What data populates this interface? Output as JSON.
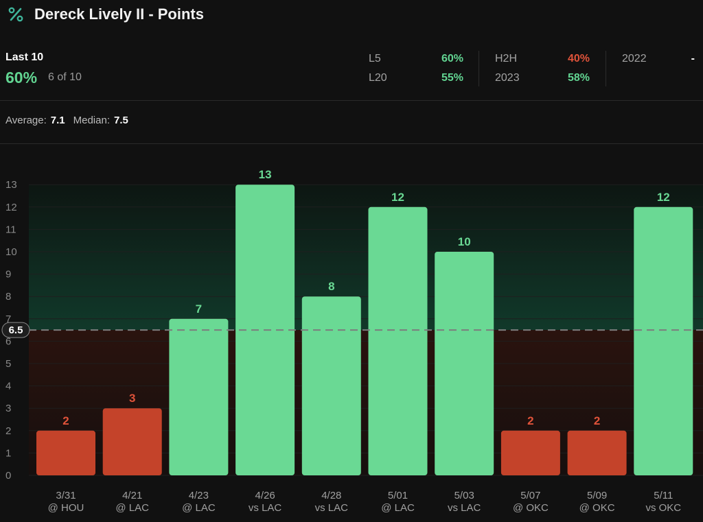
{
  "header": {
    "title": "Dereck Lively II - Points",
    "icon": "percent-icon"
  },
  "summary": {
    "label": "Last 10",
    "pct": "60%",
    "count": "6 of 10"
  },
  "stats": [
    {
      "label": "L5",
      "value": "60%",
      "color": "#62d592"
    },
    {
      "label": "L20",
      "value": "55%",
      "color": "#62d592"
    },
    {
      "label": "H2H",
      "value": "40%",
      "color": "#e0533a"
    },
    {
      "label": "2023",
      "value": "58%",
      "color": "#62d592"
    },
    {
      "label": "2022",
      "value": "-",
      "color": "#ffffff"
    }
  ],
  "averages": {
    "avg_label": "Average:",
    "avg": "7.1",
    "median_label": "Median:",
    "median": "7.5"
  },
  "colors": {
    "over": "#6ad994",
    "under": "#c4432a",
    "over_text": "#6ad994",
    "under_text": "#e0533a"
  },
  "chart_data": {
    "type": "bar",
    "line": 6.5,
    "line_label": "6.5",
    "ylim": [
      0,
      13
    ],
    "yticks": [
      0,
      1,
      2,
      3,
      4,
      5,
      6,
      7,
      8,
      9,
      10,
      11,
      12,
      13
    ],
    "categories": [
      [
        "3/31",
        "@ HOU"
      ],
      [
        "4/21",
        "@ LAC"
      ],
      [
        "4/23",
        "@ LAC"
      ],
      [
        "4/26",
        "vs LAC"
      ],
      [
        "4/28",
        "vs LAC"
      ],
      [
        "5/01",
        "@ LAC"
      ],
      [
        "5/03",
        "vs LAC"
      ],
      [
        "5/07",
        "@ OKC"
      ],
      [
        "5/09",
        "@ OKC"
      ],
      [
        "5/11",
        "vs OKC"
      ]
    ],
    "values": [
      2,
      3,
      7,
      13,
      8,
      12,
      10,
      2,
      2,
      12
    ],
    "grid": true
  }
}
